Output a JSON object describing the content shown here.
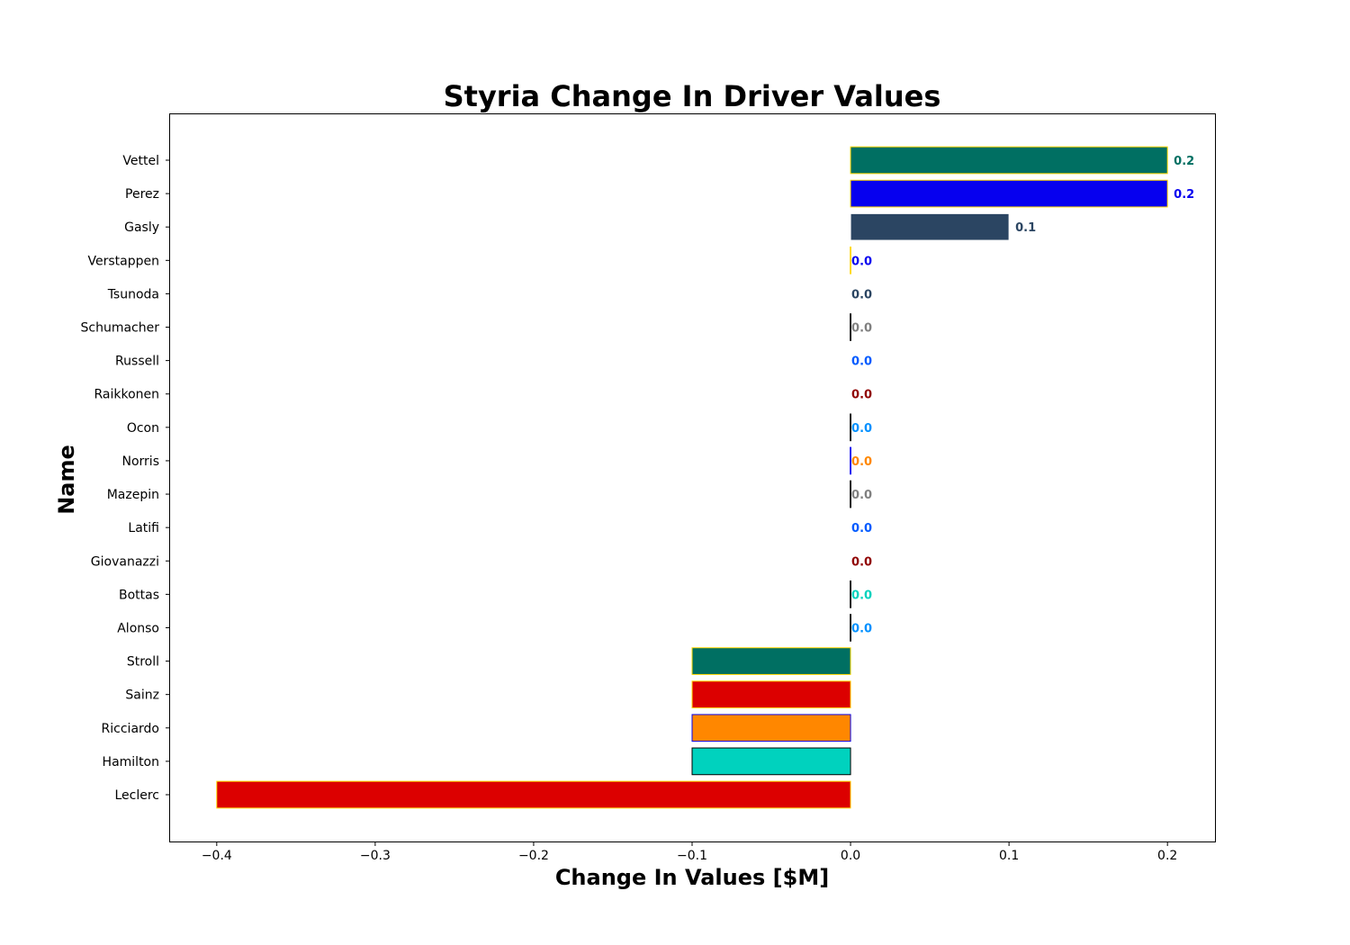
{
  "chart_data": {
    "type": "bar",
    "orientation": "horizontal",
    "title": "Styria Change In Driver Values",
    "xlabel": "Change In Values [$M]",
    "ylabel": "Name",
    "xlim": [
      -0.43,
      0.23
    ],
    "xticks": [
      -0.4,
      -0.3,
      -0.2,
      -0.1,
      0.0,
      0.1,
      0.2
    ],
    "xtick_labels": [
      "−0.4",
      "−0.3",
      "−0.2",
      "−0.1",
      "0.0",
      "0.1",
      "0.2"
    ],
    "grid": false,
    "bars": [
      {
        "name": "Vettel",
        "value": 0.2,
        "label": "0.2",
        "fill": "#006F62",
        "edge": "#FFD700",
        "label_color": "#006F62"
      },
      {
        "name": "Perez",
        "value": 0.2,
        "label": "0.2",
        "fill": "#0600EF",
        "edge": "#FFD700",
        "label_color": "#0600EF"
      },
      {
        "name": "Gasly",
        "value": 0.1,
        "label": "0.1",
        "fill": "#2B4562",
        "edge": "#FFFFFF",
        "label_color": "#2B4562"
      },
      {
        "name": "Verstappen",
        "value": 0.0,
        "label": "0.0",
        "fill": "#0600EF",
        "edge": "#FFD700",
        "label_color": "#0600EF"
      },
      {
        "name": "Tsunoda",
        "value": 0.0,
        "label": "0.0",
        "fill": "#2B4562",
        "edge": "#FFFFFF",
        "label_color": "#2B4562"
      },
      {
        "name": "Schumacher",
        "value": 0.0,
        "label": "0.0",
        "fill": "#808080",
        "edge": "#000000",
        "label_color": "#808080"
      },
      {
        "name": "Russell",
        "value": 0.0,
        "label": "0.0",
        "fill": "#005AFF",
        "edge": "#FFFFFF",
        "label_color": "#005AFF"
      },
      {
        "name": "Raikkonen",
        "value": 0.0,
        "label": "0.0",
        "fill": "#900000",
        "edge": "#FFFFFF",
        "label_color": "#900000"
      },
      {
        "name": "Ocon",
        "value": 0.0,
        "label": "0.0",
        "fill": "#0090FF",
        "edge": "#000000",
        "label_color": "#0090FF"
      },
      {
        "name": "Norris",
        "value": 0.0,
        "label": "0.0",
        "fill": "#FF8700",
        "edge": "#0600EF",
        "label_color": "#FF8700"
      },
      {
        "name": "Mazepin",
        "value": 0.0,
        "label": "0.0",
        "fill": "#808080",
        "edge": "#000000",
        "label_color": "#808080"
      },
      {
        "name": "Latifi",
        "value": 0.0,
        "label": "0.0",
        "fill": "#005AFF",
        "edge": "#FFFFFF",
        "label_color": "#005AFF"
      },
      {
        "name": "Giovanazzi",
        "value": 0.0,
        "label": "0.0",
        "fill": "#900000",
        "edge": "#FFFFFF",
        "label_color": "#900000"
      },
      {
        "name": "Bottas",
        "value": 0.0,
        "label": "0.0",
        "fill": "#00D2BE",
        "edge": "#000000",
        "label_color": "#00D2BE"
      },
      {
        "name": "Alonso",
        "value": 0.0,
        "label": "0.0",
        "fill": "#0090FF",
        "edge": "#000000",
        "label_color": "#0090FF"
      },
      {
        "name": "Stroll",
        "value": -0.1,
        "label": "",
        "fill": "#006F62",
        "edge": "#FFD700",
        "label_color": "#006F62"
      },
      {
        "name": "Sainz",
        "value": -0.1,
        "label": "",
        "fill": "#DC0000",
        "edge": "#FFD700",
        "label_color": "#DC0000"
      },
      {
        "name": "Ricciardo",
        "value": -0.1,
        "label": "",
        "fill": "#FF8700",
        "edge": "#0600EF",
        "label_color": "#FF8700"
      },
      {
        "name": "Hamilton",
        "value": -0.1,
        "label": "",
        "fill": "#00D2BE",
        "edge": "#000000",
        "label_color": "#00D2BE"
      },
      {
        "name": "Leclerc",
        "value": -0.4,
        "label": "",
        "fill": "#DC0000",
        "edge": "#FFD700",
        "label_color": "#DC0000"
      }
    ]
  }
}
